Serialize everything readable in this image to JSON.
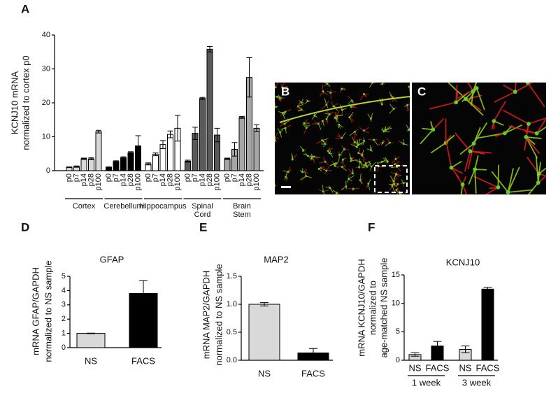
{
  "chart_data": [
    {
      "type": "bar",
      "panel": "A",
      "ylabel": [
        "KCNJ10 mRNA",
        "normalized to cortex p0"
      ],
      "ylim": [
        0,
        40
      ],
      "yticks": [
        0,
        10,
        20,
        30,
        40
      ],
      "groups": [
        {
          "name": [
            "Cortex"
          ],
          "color": "#d9d9d9",
          "categories": [
            "p0",
            "p7",
            "p14",
            "p28",
            "p100"
          ],
          "values": [
            1.0,
            1.2,
            3.5,
            3.5,
            11.5
          ],
          "errors": [
            0.1,
            0.2,
            0.2,
            0.3,
            0.4
          ]
        },
        {
          "name": [
            "Cerebellum"
          ],
          "color": "#000000",
          "categories": [
            "p0",
            "p7",
            "p14",
            "p28",
            "p100"
          ],
          "values": [
            1.0,
            2.7,
            3.8,
            5.3,
            7.3
          ],
          "errors": [
            0.1,
            0.2,
            0.3,
            0.3,
            3.0
          ]
        },
        {
          "name": [
            "Hippocampus"
          ],
          "color": "#ffffff",
          "categories": [
            "p0",
            "p7",
            "p14",
            "p28",
            "p100"
          ],
          "values": [
            2.0,
            4.8,
            7.7,
            10.7,
            12.5
          ],
          "errors": [
            0.3,
            0.4,
            1.2,
            1.0,
            3.8
          ]
        },
        {
          "name": [
            "Spinal",
            "Cord"
          ],
          "color": "#595959",
          "categories": [
            "p0",
            "p7",
            "p14",
            "p28",
            "p100"
          ],
          "values": [
            2.8,
            11.0,
            21.3,
            35.8,
            10.5
          ],
          "errors": [
            0.3,
            1.8,
            0.3,
            0.8,
            2.0
          ]
        },
        {
          "name": [
            "Brain",
            "Stem"
          ],
          "color": "#a6a6a6",
          "categories": [
            "p0",
            "p7",
            "p14",
            "p28",
            "p100"
          ],
          "values": [
            3.5,
            6.3,
            15.7,
            27.5,
            12.5
          ],
          "errors": [
            0.2,
            2.0,
            0.3,
            5.8,
            1.0
          ]
        }
      ]
    },
    {
      "type": "bar",
      "panel": "D",
      "title": "GFAP",
      "ylabel": [
        "mRNA GFAP/GAPDH",
        "normalized to NS sample"
      ],
      "ylim": [
        0,
        5
      ],
      "yticks": [
        0,
        1,
        2,
        3,
        4,
        5
      ],
      "categories": [
        "NS",
        "FACS"
      ],
      "values": [
        1.0,
        3.8
      ],
      "errors": [
        0.02,
        0.9
      ],
      "colors": [
        "#d9d9d9",
        "#000000"
      ]
    },
    {
      "type": "bar",
      "panel": "E",
      "title": "MAP2",
      "ylabel": [
        "mRNA MAP2/GAPDH",
        "normalized to NS sample"
      ],
      "ylim": [
        0,
        1.5
      ],
      "yticks": [
        {
          "value": 0,
          "label": "0.0"
        },
        0.5,
        {
          "value": 1,
          "label": "1.0"
        },
        1.5
      ],
      "categories": [
        "NS",
        "FACS"
      ],
      "values": [
        1.0,
        0.13
      ],
      "errors": [
        0.03,
        0.08
      ],
      "colors": [
        "#d9d9d9",
        "#000000"
      ]
    },
    {
      "type": "bar",
      "panel": "F",
      "title": "KCNJ10",
      "ylabel": [
        "mRNA KCNJ10/GAPDH",
        "normalized to",
        "age-matched NS sample"
      ],
      "ylim": [
        0,
        15
      ],
      "yticks": [
        0,
        5,
        10,
        15
      ],
      "groups": [
        {
          "name": [
            "1 week"
          ],
          "colors": [
            "#d9d9d9",
            "#000000"
          ],
          "categories": [
            "NS",
            "FACS"
          ],
          "values": [
            1.0,
            2.5
          ],
          "errors": [
            0.3,
            0.8
          ]
        },
        {
          "name": [
            "3 week"
          ],
          "colors": [
            "#d9d9d9",
            "#000000"
          ],
          "categories": [
            "NS",
            "FACS"
          ],
          "values": [
            1.9,
            12.5
          ],
          "errors": [
            0.6,
            0.3
          ]
        }
      ]
    }
  ],
  "images": [
    {
      "label": "B"
    },
    {
      "label": "C"
    }
  ]
}
